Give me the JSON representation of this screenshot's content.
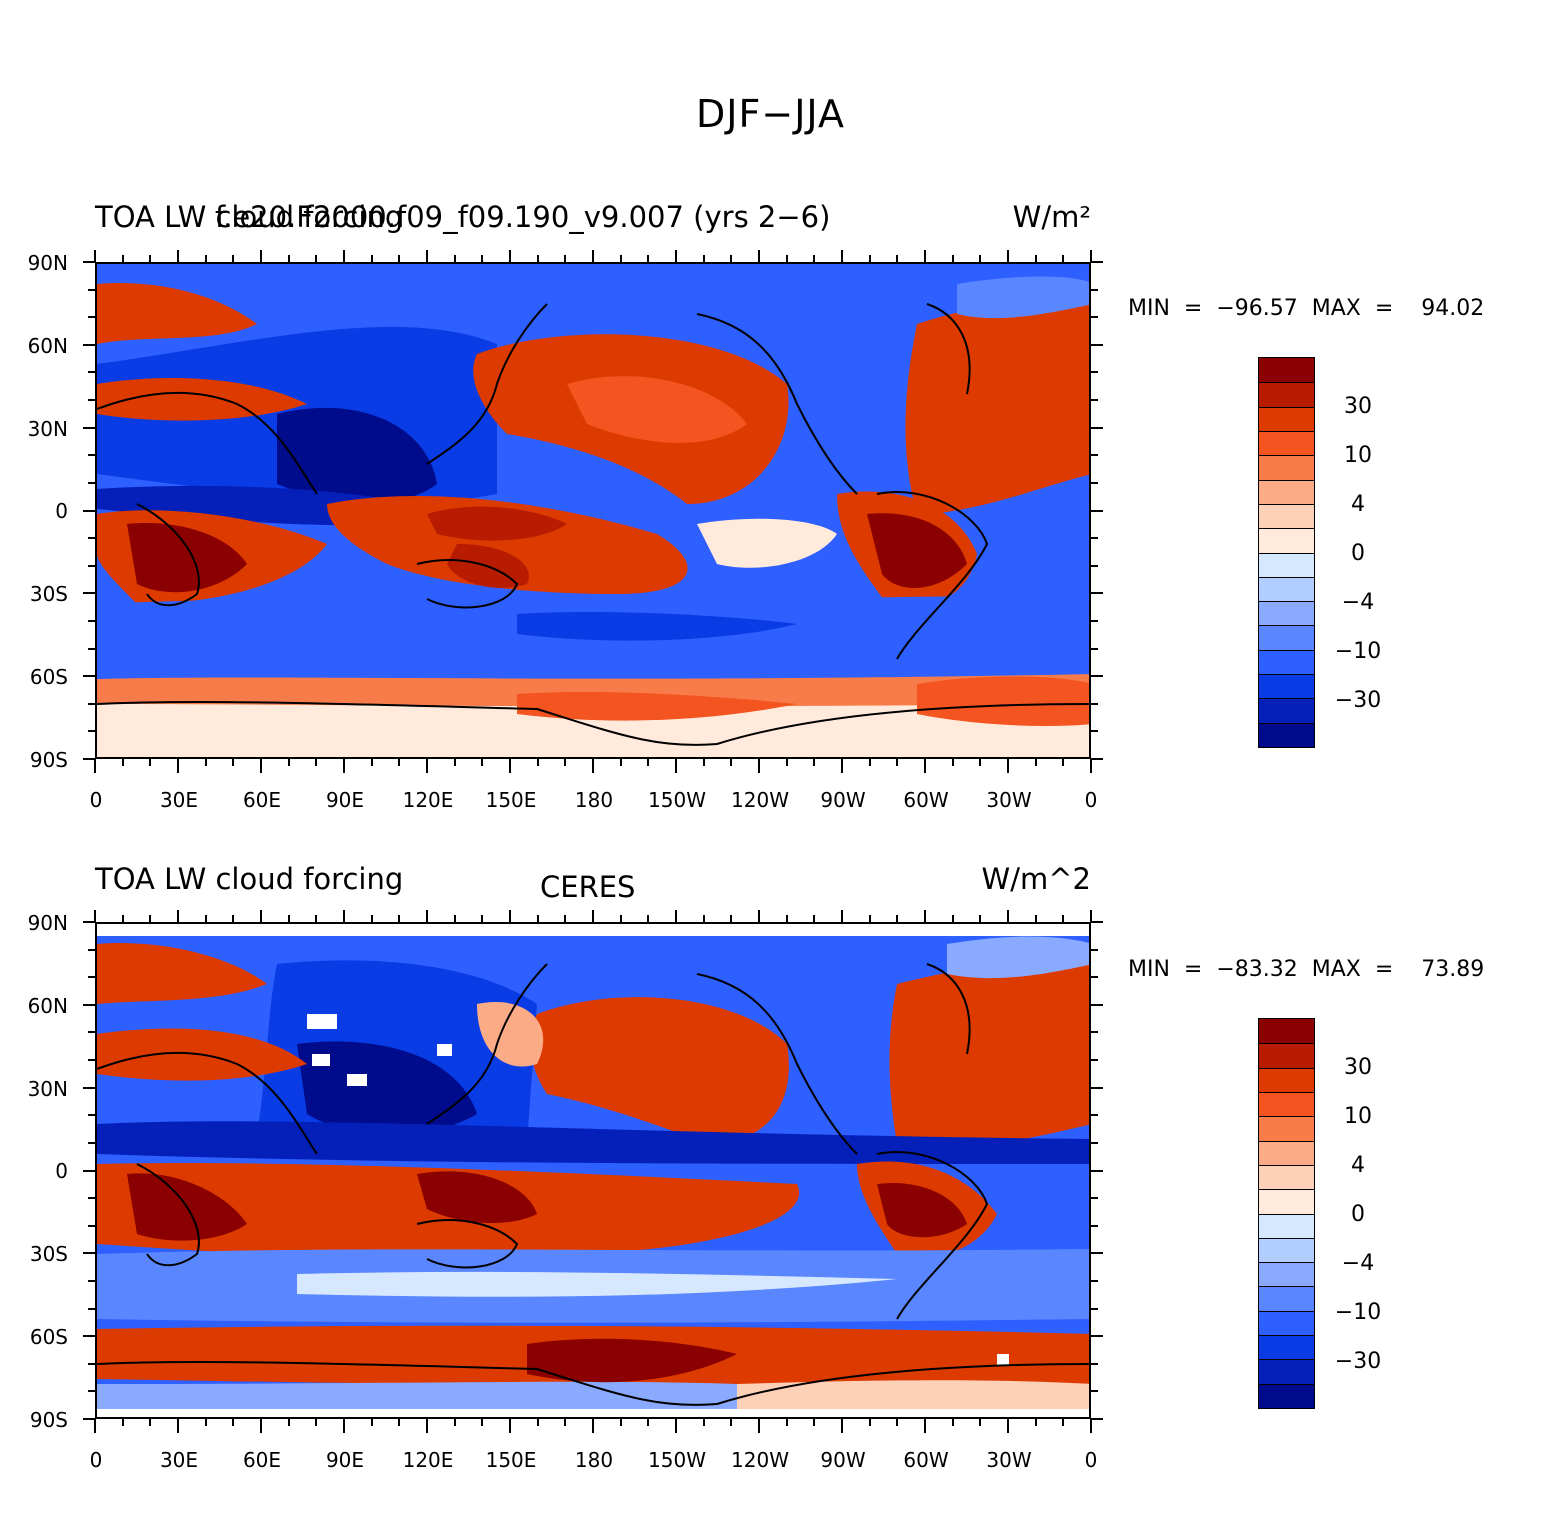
{
  "figure": {
    "title": "DJF−JJA"
  },
  "lat_labels": [
    "90N",
    "60N",
    "30N",
    "0",
    "30S",
    "60S",
    "90S"
  ],
  "lon_labels": [
    "0",
    "30E",
    "60E",
    "90E",
    "120E",
    "150E",
    "180",
    "150W",
    "120W",
    "90W",
    "60W",
    "30W",
    "0"
  ],
  "colorbar": {
    "colors": [
      "#8b0000",
      "#b71c00",
      "#dd3a00",
      "#f4541f",
      "#f87c4a",
      "#fbab86",
      "#fdd0b8",
      "#ffeadc",
      "#d6e8ff",
      "#b2cdff",
      "#89aaff",
      "#5a86ff",
      "#2e5fff",
      "#0a3ce6",
      "#0520b8",
      "#000c8c"
    ],
    "labels": [
      "30",
      "10",
      "4",
      "0",
      "−4",
      "−10",
      "−30"
    ]
  },
  "panels": [
    {
      "title_left": "TOA  LW  cloud  forcing",
      "title_overlap": "f.e20.F2000.f09_f09.190_v9.007  (yrs 2−6)",
      "title_center": "",
      "units": "W/m²",
      "stats": "MIN  =  −96.57  MAX  =    94.02",
      "min": -96.57,
      "max": 94.02
    },
    {
      "title_left": "TOA  LW  cloud  forcing",
      "title_overlap": "",
      "title_center": "CERES",
      "units": "W/m^2",
      "stats": "MIN  =  −83.32  MAX  =    73.89",
      "min": -83.32,
      "max": 73.89
    }
  ]
}
